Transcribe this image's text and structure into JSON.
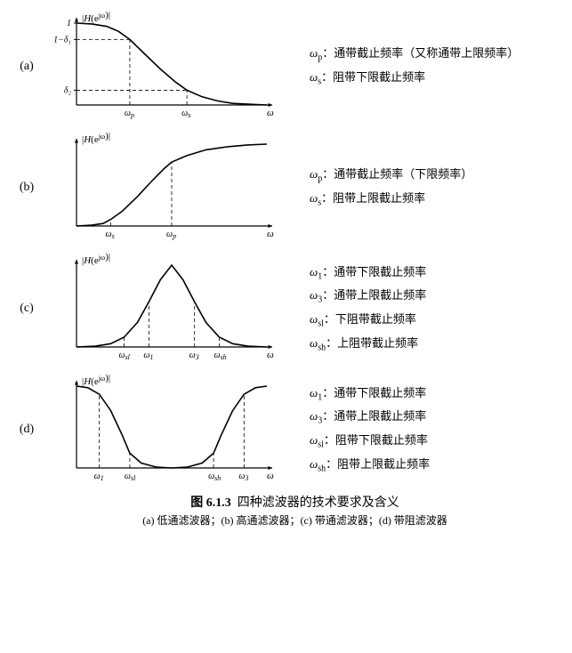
{
  "figure_number": "图 6.1.3",
  "figure_title": "四种滤波器的技术要求及含义",
  "subcaption": "(a) 低通滤波器；(b) 高通滤波器；(c) 带通滤波器；(d) 带阻滤波器",
  "axis_y_label": "|H(e^{jω})|",
  "axis_x_label": "ω",
  "stroke_color": "#000000",
  "dash_pattern": "4 3",
  "line_width_curve": 1.6,
  "line_width_axis": 1.2,
  "line_width_dash": 0.8,
  "background_color": "#ffffff",
  "panels": {
    "a": {
      "label": "(a)",
      "type": "lowpass",
      "ytick_labels": [
        "1",
        "1−δ₁",
        "δ₂"
      ],
      "ytick_positions": [
        1.0,
        0.8,
        0.18
      ],
      "xtick_labels": [
        "ω_p",
        "ω_s"
      ],
      "xtick_positions": [
        0.28,
        0.58
      ],
      "curve": [
        [
          0.0,
          1.0
        ],
        [
          0.08,
          0.99
        ],
        [
          0.16,
          0.96
        ],
        [
          0.22,
          0.9
        ],
        [
          0.28,
          0.8
        ],
        [
          0.36,
          0.62
        ],
        [
          0.44,
          0.44
        ],
        [
          0.52,
          0.28
        ],
        [
          0.58,
          0.18
        ],
        [
          0.66,
          0.1
        ],
        [
          0.74,
          0.05
        ],
        [
          0.82,
          0.02
        ],
        [
          0.9,
          0.01
        ],
        [
          1.0,
          0.0
        ]
      ],
      "legend": [
        {
          "sym": "ω_p",
          "text": "：通带截止频率（又称通带上限频率）"
        },
        {
          "sym": "ω_s",
          "text": "：阻带下限截止频率"
        }
      ]
    },
    "b": {
      "label": "(b)",
      "type": "highpass",
      "xtick_labels": [
        "ω_s",
        "ω_p"
      ],
      "xtick_positions": [
        0.18,
        0.5
      ],
      "curve": [
        [
          0.0,
          0.0
        ],
        [
          0.08,
          0.01
        ],
        [
          0.14,
          0.03
        ],
        [
          0.18,
          0.08
        ],
        [
          0.24,
          0.18
        ],
        [
          0.32,
          0.36
        ],
        [
          0.4,
          0.56
        ],
        [
          0.46,
          0.7
        ],
        [
          0.5,
          0.78
        ],
        [
          0.58,
          0.86
        ],
        [
          0.68,
          0.93
        ],
        [
          0.8,
          0.97
        ],
        [
          0.9,
          0.99
        ],
        [
          1.0,
          1.0
        ]
      ],
      "legend": [
        {
          "sym": "ω_p",
          "text": "：通带截止频率（下限频率）"
        },
        {
          "sym": "ω_s",
          "text": "：阻带上限截止频率"
        }
      ]
    },
    "c": {
      "label": "(c)",
      "type": "bandpass",
      "xtick_labels": [
        "ω_sl",
        "ω_1",
        "ω_3",
        "ω_sh"
      ],
      "xtick_positions": [
        0.25,
        0.38,
        0.62,
        0.75
      ],
      "curve": [
        [
          0.0,
          0.0
        ],
        [
          0.1,
          0.01
        ],
        [
          0.18,
          0.04
        ],
        [
          0.25,
          0.12
        ],
        [
          0.32,
          0.3
        ],
        [
          0.38,
          0.55
        ],
        [
          0.44,
          0.82
        ],
        [
          0.5,
          1.0
        ],
        [
          0.56,
          0.82
        ],
        [
          0.62,
          0.55
        ],
        [
          0.68,
          0.3
        ],
        [
          0.75,
          0.12
        ],
        [
          0.82,
          0.04
        ],
        [
          0.9,
          0.01
        ],
        [
          1.0,
          0.0
        ]
      ],
      "legend": [
        {
          "sym": "ω_1",
          "text": "：通带下限截止频率"
        },
        {
          "sym": "ω_3",
          "text": "：通带上限截止频率"
        },
        {
          "sym": "ω_sl",
          "text": "：下阻带截止频率"
        },
        {
          "sym": "ω_sh",
          "text": "：上阻带截止频率"
        }
      ]
    },
    "d": {
      "label": "(d)",
      "type": "bandstop",
      "xtick_labels": [
        "ω_1",
        "ω_sl",
        "ω_sh",
        "ω_3"
      ],
      "xtick_positions": [
        0.12,
        0.28,
        0.72,
        0.88
      ],
      "curve": [
        [
          0.0,
          1.0
        ],
        [
          0.06,
          0.98
        ],
        [
          0.12,
          0.9
        ],
        [
          0.18,
          0.7
        ],
        [
          0.24,
          0.4
        ],
        [
          0.28,
          0.18
        ],
        [
          0.34,
          0.06
        ],
        [
          0.42,
          0.01
        ],
        [
          0.5,
          0.0
        ],
        [
          0.58,
          0.01
        ],
        [
          0.66,
          0.06
        ],
        [
          0.72,
          0.18
        ],
        [
          0.76,
          0.4
        ],
        [
          0.82,
          0.7
        ],
        [
          0.88,
          0.9
        ],
        [
          0.94,
          0.98
        ],
        [
          1.0,
          1.0
        ]
      ],
      "legend": [
        {
          "sym": "ω_1",
          "text": "：通带下限截止频率"
        },
        {
          "sym": "ω_3",
          "text": "：通带上限截止频率"
        },
        {
          "sym": "ω_sl",
          "text": "：阻带下限截止频率"
        },
        {
          "sym": "ω_sh",
          "text": "：阻带上限截止频率"
        }
      ]
    }
  }
}
